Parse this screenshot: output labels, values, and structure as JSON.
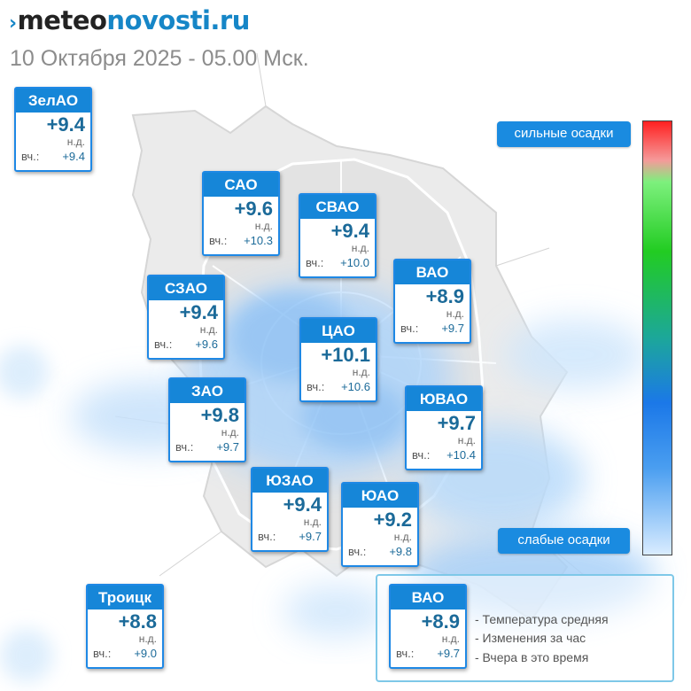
{
  "header": {
    "logo_part1": "meteo",
    "logo_part2": "novosti.ru",
    "timestamp": "10 Октября 2025 - 05.00 Мск."
  },
  "districts": [
    {
      "name": "ЗелАО",
      "temp": "+9.4",
      "change": "н.д.",
      "yest_label": "вч.:",
      "yest": "+9.4"
    },
    {
      "name": "САО",
      "temp": "+9.6",
      "change": "н.д.",
      "yest_label": "вч.:",
      "yest": "+10.3"
    },
    {
      "name": "СВАО",
      "temp": "+9.4",
      "change": "н.д.",
      "yest_label": "вч.:",
      "yest": "+10.0"
    },
    {
      "name": "ВАО",
      "temp": "+8.9",
      "change": "н.д.",
      "yest_label": "вч.:",
      "yest": "+9.7"
    },
    {
      "name": "СЗАО",
      "temp": "+9.4",
      "change": "н.д.",
      "yest_label": "вч.:",
      "yest": "+9.6"
    },
    {
      "name": "ЦАО",
      "temp": "+10.1",
      "change": "н.д.",
      "yest_label": "вч.:",
      "yest": "+10.6"
    },
    {
      "name": "ЗАО",
      "temp": "+9.8",
      "change": "н.д.",
      "yest_label": "вч.:",
      "yest": "+9.7"
    },
    {
      "name": "ЮВАО",
      "temp": "+9.7",
      "change": "н.д.",
      "yest_label": "вч.:",
      "yest": "+10.4"
    },
    {
      "name": "ЮЗАО",
      "temp": "+9.4",
      "change": "н.д.",
      "yest_label": "вч.:",
      "yest": "+9.7"
    },
    {
      "name": "ЮАО",
      "temp": "+9.2",
      "change": "н.д.",
      "yest_label": "вч.:",
      "yest": "+9.8"
    },
    {
      "name": "Троицк",
      "temp": "+8.8",
      "change": "н.д.",
      "yest_label": "вч.:",
      "yest": "+9.0"
    }
  ],
  "precip_scale": {
    "high_label": "сильные осадки",
    "low_label": "слабые осадки",
    "colors": [
      "#ff2020",
      "#22cc22",
      "#1b78e8",
      "#d9ecff"
    ]
  },
  "legend": {
    "sample": {
      "name": "ВАО",
      "temp": "+8.9",
      "change": "н.д.",
      "yest_label": "вч.:",
      "yest": "+9.7"
    },
    "desc_temp": "- Температура средняя",
    "desc_change": "- Изменения за час",
    "desc_yest": "- Вчера в это время"
  },
  "colors": {
    "accent": "#1686d8",
    "temp_text": "#1b6a99"
  }
}
